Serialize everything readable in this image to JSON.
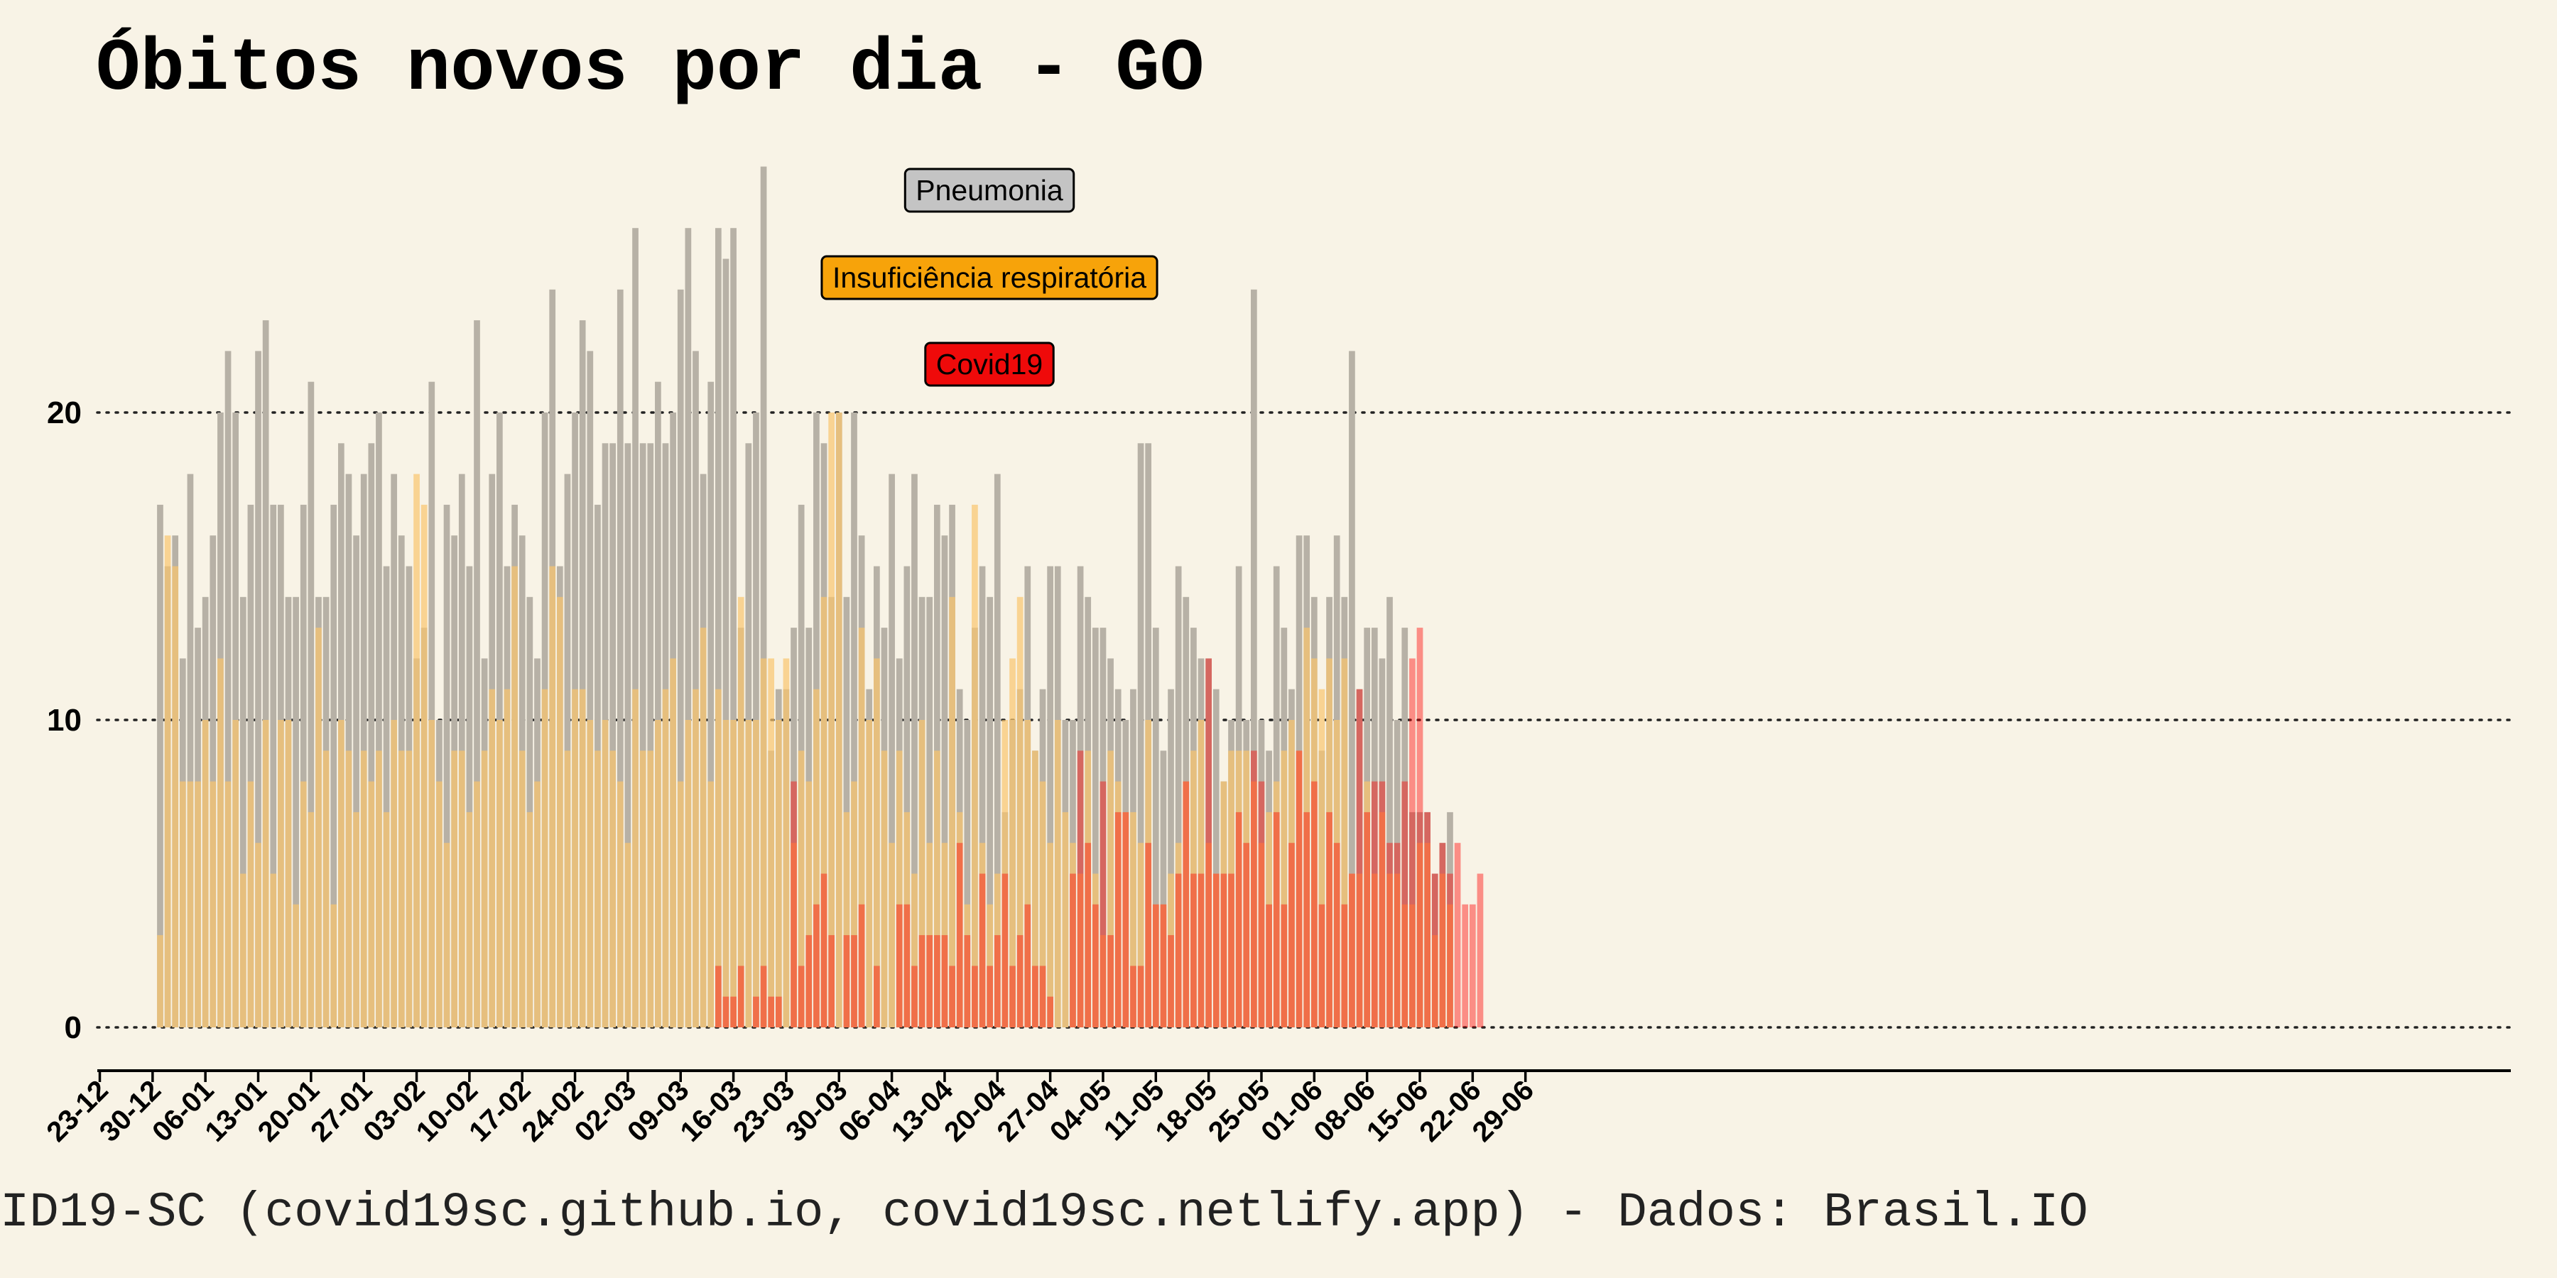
{
  "chart_data": {
    "type": "bar",
    "title": "Óbitos novos por dia -  GO",
    "footer": "ID19-SC (covid19sc.github.io, covid19sc.netlify.app)   -  Dados: Brasil.IO",
    "start_date": "2019-12-23",
    "x_ticks": [
      "23-12",
      "30-12",
      "06-01",
      "13-01",
      "20-01",
      "27-01",
      "03-02",
      "10-02",
      "17-02",
      "24-02",
      "02-03",
      "09-03",
      "16-03",
      "23-03",
      "30-03",
      "06-04",
      "13-04",
      "20-04",
      "27-04",
      "04-05",
      "11-05",
      "18-05",
      "25-05",
      "01-06",
      "08-06",
      "15-06",
      "22-06",
      "29-06"
    ],
    "y_ticks": [
      0,
      10,
      20
    ],
    "ylim": [
      0,
      28.5
    ],
    "grid": "horizontal-dotted",
    "overlay": true,
    "series": [
      {
        "name": "Pneumonia",
        "color": "#b7b1a6",
        "opacity": 1.0,
        "start_day": 8,
        "values": [
          17,
          15,
          16,
          12,
          18,
          13,
          14,
          16,
          20,
          22,
          20,
          14,
          17,
          22,
          23,
          17,
          17,
          14,
          14,
          17,
          21,
          14,
          14,
          17,
          19,
          18,
          16,
          18,
          19,
          20,
          15,
          18,
          16,
          15,
          12,
          13,
          21,
          10,
          17,
          16,
          18,
          15,
          23,
          12,
          18,
          20,
          15,
          17,
          16,
          14,
          12,
          20,
          24,
          15,
          18,
          20,
          23,
          22,
          17,
          19,
          19,
          24,
          19,
          26,
          19,
          19,
          21,
          19,
          20,
          24,
          26,
          22,
          18,
          21,
          26,
          25,
          26,
          13,
          19,
          20,
          28,
          9,
          11,
          11,
          13,
          17,
          13,
          20,
          19,
          14,
          20,
          14,
          20,
          16,
          11,
          15,
          13,
          18,
          12,
          15,
          18,
          14,
          14,
          17,
          16,
          17,
          11,
          10,
          13,
          15,
          14,
          18,
          7,
          10,
          11,
          15,
          9,
          11,
          15,
          15,
          10,
          10,
          15,
          14,
          13,
          13,
          12,
          11,
          10,
          11,
          19,
          19,
          13,
          9,
          11,
          15,
          14,
          13,
          12,
          12,
          11,
          8,
          10,
          15,
          10,
          24,
          10,
          9,
          15,
          13,
          11,
          16,
          16,
          14,
          9,
          14,
          16,
          14,
          22,
          11,
          13,
          13,
          12,
          14,
          10,
          13,
          7,
          7,
          7,
          5,
          6,
          7
        ]
      },
      {
        "name": "Insuficiência respiratória",
        "color": "#f9c46e",
        "opacity": 0.7,
        "start_day": 8,
        "values": [
          3,
          16,
          15,
          8,
          8,
          8,
          10,
          8,
          12,
          8,
          10,
          5,
          8,
          6,
          10,
          5,
          10,
          10,
          4,
          8,
          7,
          13,
          9,
          4,
          10,
          9,
          7,
          9,
          8,
          9,
          7,
          10,
          9,
          9,
          18,
          17,
          10,
          8,
          6,
          9,
          9,
          7,
          8,
          9,
          11,
          10,
          11,
          15,
          9,
          7,
          8,
          11,
          15,
          14,
          9,
          11,
          11,
          10,
          9,
          10,
          9,
          8,
          6,
          11,
          9,
          9,
          10,
          11,
          12,
          8,
          10,
          11,
          13,
          8,
          11,
          10,
          10,
          14,
          10,
          10,
          12,
          12,
          10,
          12,
          6,
          9,
          8,
          11,
          14,
          20,
          20,
          7,
          8,
          13,
          10,
          12,
          9,
          6,
          9,
          7,
          5,
          10,
          6,
          9,
          6,
          14,
          7,
          4,
          17,
          6,
          4,
          5,
          10,
          12,
          14,
          10,
          9,
          8,
          6,
          10,
          7,
          6,
          5,
          9,
          5,
          3,
          9,
          8,
          7,
          7,
          6,
          10,
          4,
          4,
          5,
          6,
          8,
          9,
          10,
          6,
          5,
          8,
          9,
          9,
          9,
          8,
          6,
          7,
          8,
          9,
          10,
          9,
          13,
          12,
          11,
          12,
          10,
          12,
          5,
          5,
          8,
          5,
          7,
          5,
          5,
          4,
          4,
          6,
          6,
          3,
          5,
          4
        ]
      },
      {
        "name": "Covid19",
        "color": "#ff0000",
        "opacity": 0.42,
        "start_day": 82,
        "values": [
          2,
          1,
          1,
          2,
          0,
          1,
          2,
          1,
          1,
          0,
          8,
          2,
          3,
          4,
          5,
          3,
          0,
          3,
          3,
          4,
          0,
          2,
          0,
          0,
          4,
          4,
          2,
          3,
          3,
          3,
          3,
          2,
          6,
          3,
          2,
          5,
          2,
          3,
          5,
          2,
          3,
          4,
          2,
          2,
          1,
          0,
          0,
          5,
          9,
          6,
          4,
          8,
          3,
          7,
          7,
          2,
          2,
          6,
          4,
          4,
          3,
          5,
          8,
          5,
          5,
          12,
          5,
          5,
          5,
          7,
          6,
          9,
          8,
          4,
          7,
          4,
          6,
          9,
          7,
          8,
          4,
          7,
          6,
          4,
          5,
          11,
          7,
          8,
          8,
          6,
          6,
          8,
          12,
          13,
          7,
          5,
          6,
          5,
          6,
          4,
          4,
          5
        ]
      }
    ],
    "legend": {
      "placement": "top-center",
      "items": [
        "Pneumonia",
        "Insuficiência respiratória",
        "Covid19"
      ],
      "colors": [
        "#c4c4c4",
        "#f7a30a",
        "#ef0a0a"
      ]
    }
  }
}
